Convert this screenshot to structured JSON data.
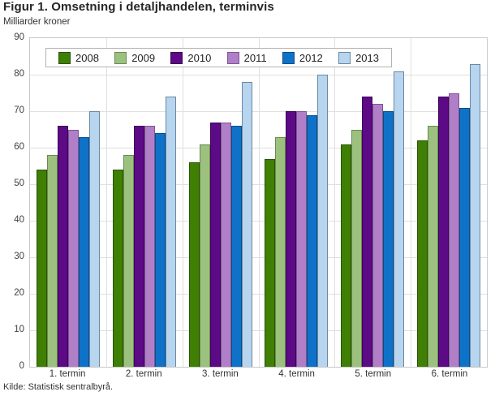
{
  "chart_data": {
    "type": "bar",
    "title": "Figur 1. Omsetning i detaljhandelen, terminvis",
    "subtitle": "Milliarder kroner",
    "source": "Kilde: Statistisk sentralbyrå.",
    "categories": [
      "1. termin",
      "2. termin",
      "3. termin",
      "4. termin",
      "5. termin",
      "6. termin"
    ],
    "series": [
      {
        "name": "2008",
        "color": "#3e7f04",
        "border": "#2a5406",
        "values": [
          54,
          54,
          56,
          57,
          61,
          62
        ]
      },
      {
        "name": "2009",
        "color": "#9cc17e",
        "border": "#6a8a52",
        "values": [
          58,
          58,
          61,
          63,
          65,
          66
        ]
      },
      {
        "name": "2010",
        "color": "#5c0a85",
        "border": "#3b0556",
        "values": [
          66,
          66,
          67,
          70,
          74,
          74
        ]
      },
      {
        "name": "2011",
        "color": "#b07fc7",
        "border": "#7e5694",
        "values": [
          65,
          66,
          67,
          70,
          72,
          75
        ]
      },
      {
        "name": "2012",
        "color": "#0f72c9",
        "border": "#0b4d89",
        "values": [
          63,
          64,
          66,
          69,
          70,
          71
        ]
      },
      {
        "name": "2013",
        "color": "#b7d5ee",
        "border": "#6b87a0",
        "values": [
          70,
          74,
          78,
          80,
          81,
          83
        ]
      }
    ],
    "ylim": [
      0,
      90
    ],
    "ytick_step": 10,
    "grid": true,
    "legend_position": "top-inside"
  }
}
